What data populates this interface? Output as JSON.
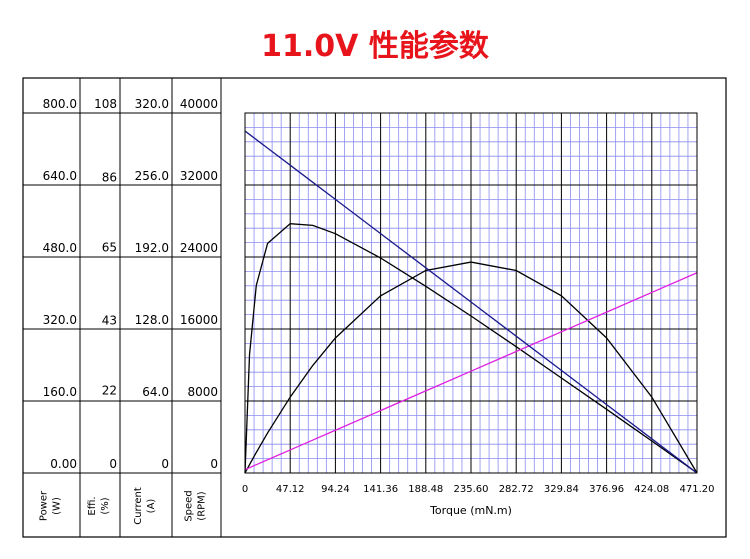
{
  "chart_data": {
    "type": "line",
    "title": "11.0V 性能参数",
    "x_label": "Torque (mN.m)",
    "x": [
      0,
      4.71,
      11.78,
      23.56,
      47.12,
      70.68,
      94.24,
      141.36,
      188.48,
      235.6,
      282.72,
      329.84,
      376.96,
      424.08,
      471.2
    ],
    "xlim": [
      0,
      471.2
    ],
    "xticks": [
      0,
      47.12,
      94.24,
      141.36,
      188.48,
      {
        "value": 235.6,
        "label": "235.60"
      },
      282.72,
      329.84,
      376.96,
      424.08,
      {
        "value": 471.2,
        "label": "471.20"
      }
    ],
    "grid": true,
    "minor_divisions": 5,
    "series": [
      {
        "name": "Power",
        "unit": "(W)",
        "color": "#000000",
        "values": [
          0,
          18.56,
          45.71,
          89.07,
          168.76,
          239.07,
          300.01,
          393.77,
          450.02,
          468.77,
          450.01,
          393.76,
          300.02,
          168.74,
          0
        ],
        "ylim": [
          0,
          800
        ],
        "yticks": [
          {
            "value": 0,
            "label": "0.00"
          },
          {
            "value": 160,
            "label": "160.0"
          },
          {
            "value": 320,
            "label": "320.0"
          },
          {
            "value": 480,
            "label": "480.0"
          },
          {
            "value": 640,
            "label": "640.0"
          },
          {
            "value": 800,
            "label": "800.0"
          }
        ]
      },
      {
        "name": "Effi.",
        "unit": "(%)",
        "color": "#000000",
        "values": [
          0,
          35.5,
          56.3,
          68.9,
          74.8,
          74.3,
          71.8,
          64.5,
          56.0,
          47.1,
          37.9,
          28.5,
          19.1,
          9.6,
          0
        ],
        "ylim": [
          0,
          108
        ],
        "yticks": [
          0,
          22,
          43,
          65,
          86,
          108
        ]
      },
      {
        "name": "Current",
        "unit": "(A)",
        "color": "#e020e0",
        "values": [
          3,
          4.75,
          7.38,
          11.75,
          20.5,
          29.25,
          38,
          55.5,
          73,
          90.5,
          108,
          125.5,
          143,
          160.5,
          178
        ],
        "ylim": [
          0,
          320
        ],
        "yticks": [
          0,
          {
            "value": 64,
            "label": "64.0"
          },
          {
            "value": 128,
            "label": "128.0"
          },
          {
            "value": 192,
            "label": "192.0"
          },
          {
            "value": 256,
            "label": "256.0"
          },
          {
            "value": 320,
            "label": "320.0"
          }
        ]
      },
      {
        "name": "Speed",
        "unit": "(RPM)",
        "color": "#1a1a8c",
        "values": [
          38000,
          37620,
          37050,
          36100,
          34200,
          32300,
          30400,
          26600,
          22800,
          19000,
          15200,
          11400,
          7600,
          3800,
          0
        ],
        "ylim": [
          0,
          40000
        ],
        "yticks": [
          0,
          8000,
          16000,
          24000,
          32000,
          40000
        ]
      }
    ]
  }
}
